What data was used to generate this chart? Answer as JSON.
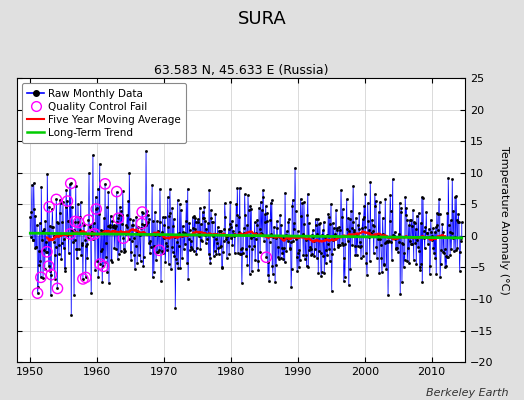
{
  "title": "SURA",
  "subtitle": "63.583 N, 45.633 E (Russia)",
  "ylabel": "Temperature Anomaly (°C)",
  "xlabel_bottom": "Berkeley Earth",
  "xlim": [
    1948,
    2015
  ],
  "ylim": [
    -20,
    25
  ],
  "yticks": [
    -20,
    -15,
    -10,
    -5,
    0,
    5,
    10,
    15,
    20,
    25
  ],
  "xticks": [
    1950,
    1960,
    1970,
    1980,
    1990,
    2000,
    2010
  ],
  "background_color": "#e0e0e0",
  "plot_bg_color": "#ffffff",
  "raw_color": "#0000ff",
  "marker_color": "#000000",
  "qc_color": "#ff00ff",
  "moving_avg_color": "#ff0000",
  "trend_color": "#00cc00",
  "seed": 42,
  "n_points": 780,
  "start_year": 1950.0,
  "end_year": 2014.5
}
